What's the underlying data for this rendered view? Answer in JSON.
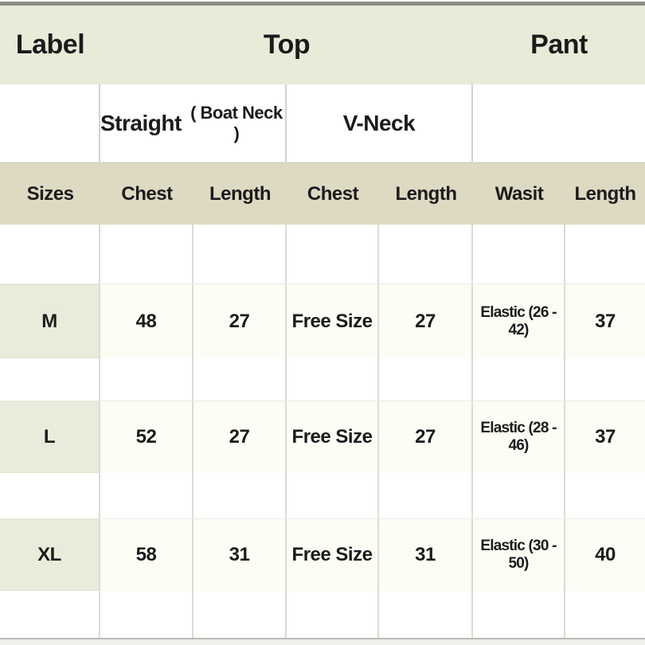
{
  "table": {
    "title_row": {
      "label": "Label",
      "top": "Top",
      "pant": "Pant"
    },
    "subhead_row": {
      "straight": "Straight",
      "straight_note": "( Boat Neck )",
      "vneck": "V-Neck"
    },
    "columns": [
      "Sizes",
      "Chest",
      "Length",
      "Chest",
      "Length",
      "Wasit",
      "Length"
    ],
    "rows": [
      {
        "size": "M",
        "cells": [
          "48",
          "27",
          "Free Size",
          "27",
          "Elastic (26 - 42)",
          "37"
        ]
      },
      {
        "size": "L",
        "cells": [
          "52",
          "27",
          "Free Size",
          "27",
          "Elastic (28 - 46)",
          "37"
        ]
      },
      {
        "size": "XL",
        "cells": [
          "58",
          "31",
          "Free Size",
          "31",
          "Elastic (30 - 50)",
          "40"
        ]
      }
    ],
    "colors": {
      "title_row_bg": "#e9ebd9",
      "column_header_bg": "#ddd9c3",
      "size_cell_bg": "#e9ecda",
      "data_cell_bg": "#fdfdf6",
      "text": "#1b1b1b",
      "top_bar": "#8d8f86"
    }
  }
}
